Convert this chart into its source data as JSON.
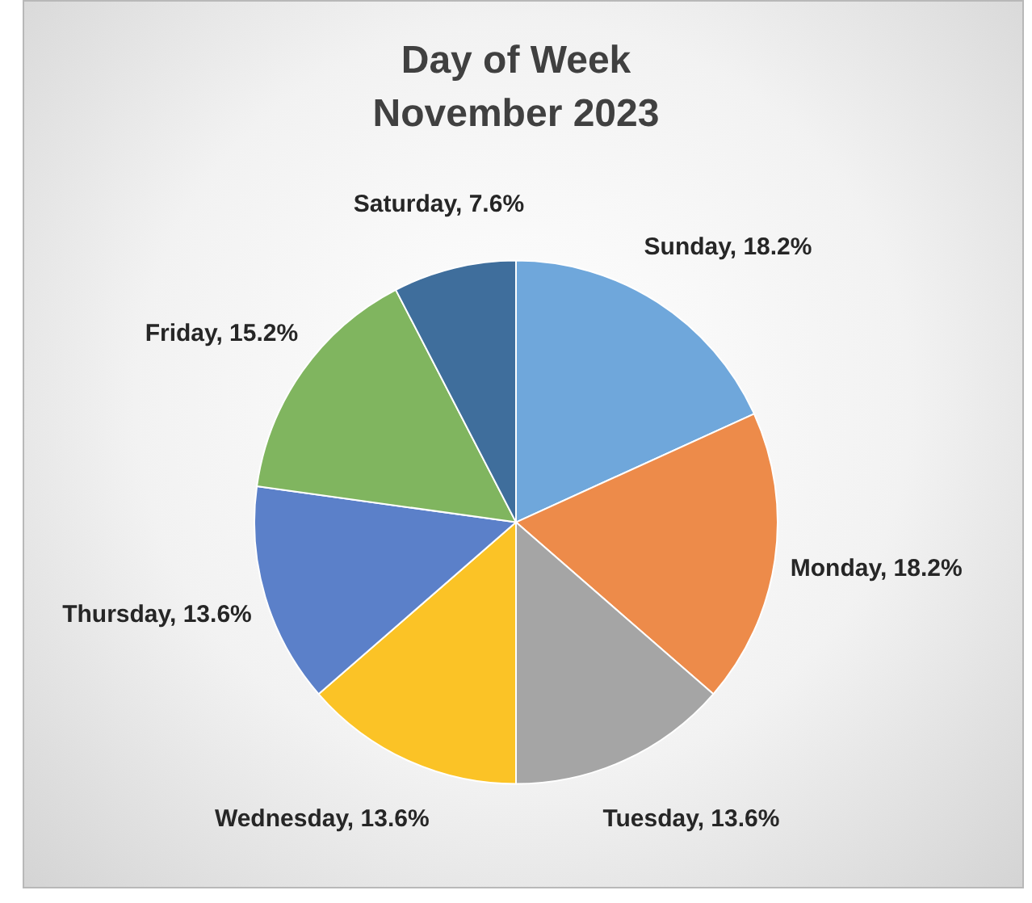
{
  "chart_data": {
    "type": "pie",
    "title": "Day of Week",
    "subtitle": "November 2023",
    "categories": [
      "Sunday",
      "Monday",
      "Tuesday",
      "Wednesday",
      "Thursday",
      "Friday",
      "Saturday"
    ],
    "values": [
      18.2,
      18.2,
      13.6,
      13.6,
      13.6,
      15.2,
      7.6
    ],
    "value_labels": [
      "18.2%",
      "18.2%",
      "13.6%",
      "13.6%",
      "13.6%",
      "15.2%",
      "7.6%"
    ],
    "colors": [
      "#6fa7db",
      "#ed8b4a",
      "#a5a5a5",
      "#fbc326",
      "#5b80c9",
      "#80b55f",
      "#3f6e9c"
    ],
    "legend": false
  }
}
